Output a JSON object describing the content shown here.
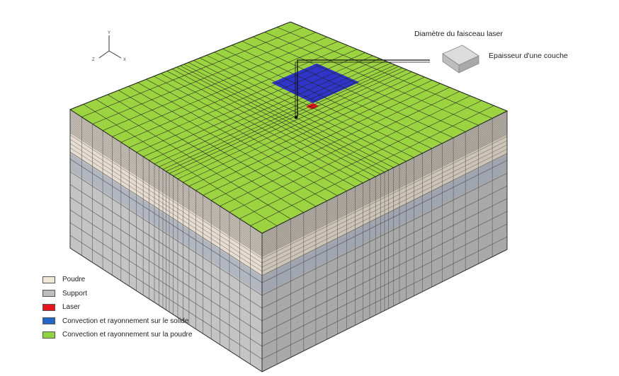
{
  "axes": {
    "y": "Y",
    "z": "Z",
    "x": "X"
  },
  "annotations": {
    "beam_diameter": "Diamètre du faisceau laser",
    "layer_thickness": "Epaisseur d'une couche"
  },
  "legend": [
    {
      "label": "Poudre",
      "color": "#efe7da"
    },
    {
      "label": "Support",
      "color": "#bdbdbd"
    },
    {
      "label": "Laser",
      "color": "#e8141b"
    },
    {
      "label": "Convection et rayonnement sur le solide",
      "color": "#2266cc"
    },
    {
      "label": "Convection et rayonnement sur la poudre",
      "color": "#8fd43f"
    }
  ],
  "colors": {
    "top_powder": "#9bd341",
    "solid_region": "#2f35c8",
    "laser_spot": "#e8141b",
    "powder_side_left": "#e6ddd0",
    "powder_side_right": "#ccc4b6",
    "support_side_left": "#c4c4c4",
    "support_side_right": "#a9a9a9",
    "interface_band": "#8f9eb6"
  }
}
